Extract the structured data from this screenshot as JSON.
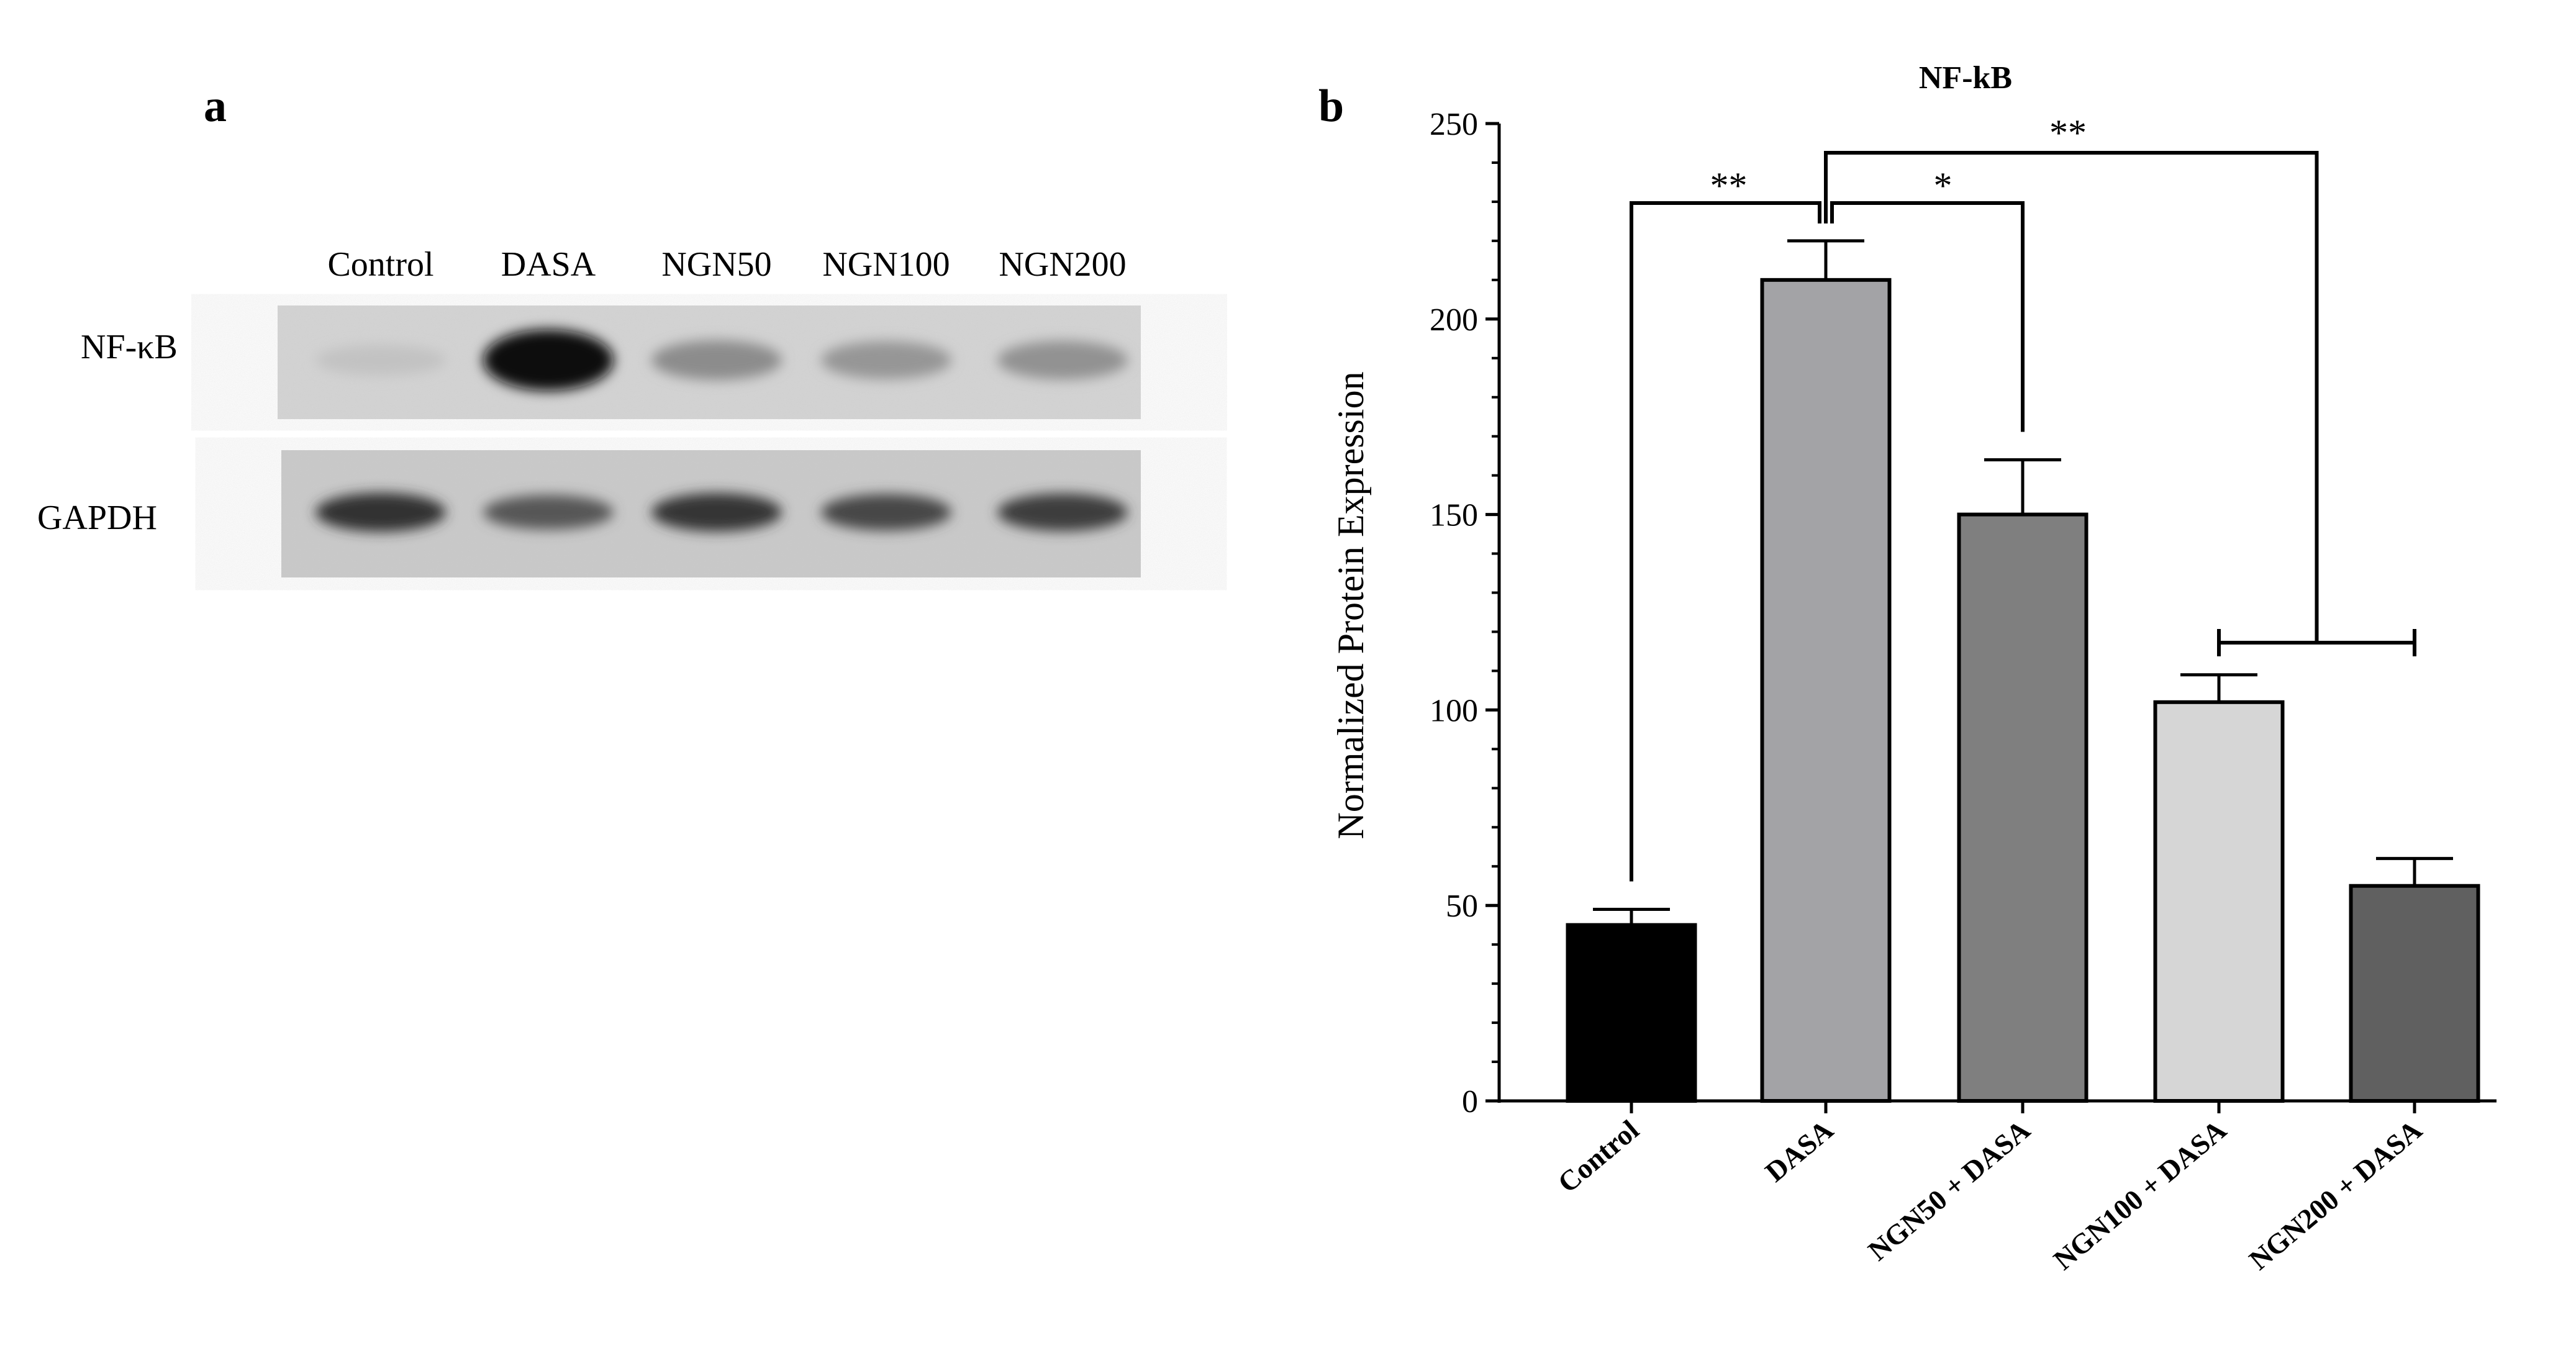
{
  "panel_a": {
    "letter": "a",
    "lanes": [
      "Control",
      "DASA",
      "NGN50",
      "NGN100",
      "NGN200"
    ],
    "rows": [
      "NF-κB",
      "GAPDH"
    ],
    "band_intensity": {
      "NF-κB": [
        0.08,
        1.0,
        0.35,
        0.3,
        0.32
      ],
      "GAPDH": [
        0.8,
        0.62,
        0.78,
        0.7,
        0.75
      ]
    }
  },
  "panel_b": {
    "letter": "b"
  },
  "chart_data": {
    "type": "bar",
    "title": "NF-kB",
    "xlabel": "",
    "ylabel": "Normalized Protein Expression",
    "categories": [
      "Control",
      "DASA",
      "NGN50 + DASA",
      "NGN100 + DASA",
      "NGN200 + DASA"
    ],
    "values": [
      45,
      210,
      150,
      102,
      55
    ],
    "errors": [
      4,
      10,
      14,
      7,
      7
    ],
    "colors": [
      "#000000",
      "#a3a3a6",
      "#7f7f7f",
      "#d6d6d6",
      "#606060"
    ],
    "ylim": [
      0,
      250
    ],
    "yticks": [
      0,
      50,
      100,
      150,
      200,
      250
    ],
    "grid": false,
    "significance": [
      {
        "groups": [
          "Control",
          "DASA"
        ],
        "label": "**"
      },
      {
        "groups": [
          "DASA",
          "NGN50 + DASA"
        ],
        "label": "*"
      },
      {
        "groups": [
          "DASA",
          "NGN100 + DASA, NGN200 + DASA"
        ],
        "label": "**"
      }
    ]
  }
}
